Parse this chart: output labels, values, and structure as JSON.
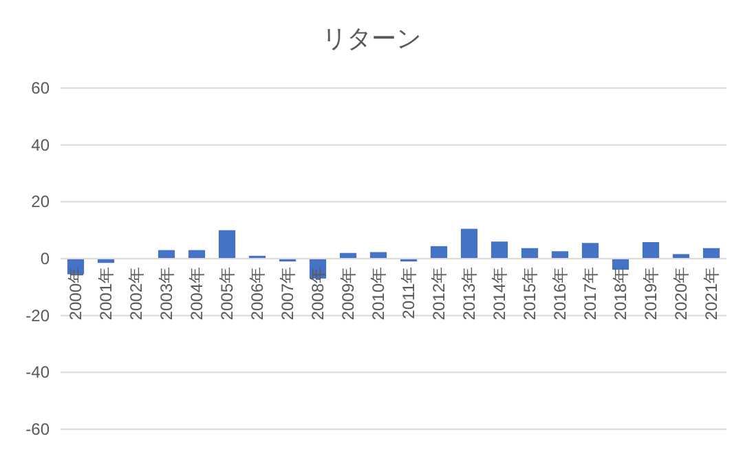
{
  "chart_data": {
    "type": "bar",
    "title": "リターン",
    "categories": [
      "2000年",
      "2001年",
      "2002年",
      "2003年",
      "2004年",
      "2005年",
      "2006年",
      "2007年",
      "2008年",
      "2009年",
      "2010年",
      "2011年",
      "2012年",
      "2013年",
      "2014年",
      "2015年",
      "2016年",
      "2017年",
      "2018年",
      "2019年",
      "2020年",
      "2021年"
    ],
    "values": [
      -5.5,
      -1.5,
      0,
      3,
      3,
      10,
      1,
      -1,
      -7,
      2,
      2.3,
      -1,
      4.4,
      10.5,
      6,
      3.7,
      2.6,
      5.5,
      -3.9,
      5.8,
      1.6,
      3.7
    ],
    "color": "#4472c4",
    "ylim": [
      -60,
      60
    ],
    "yticks": [
      -60,
      -40,
      -20,
      0,
      20,
      40,
      60
    ],
    "grid": "y"
  }
}
